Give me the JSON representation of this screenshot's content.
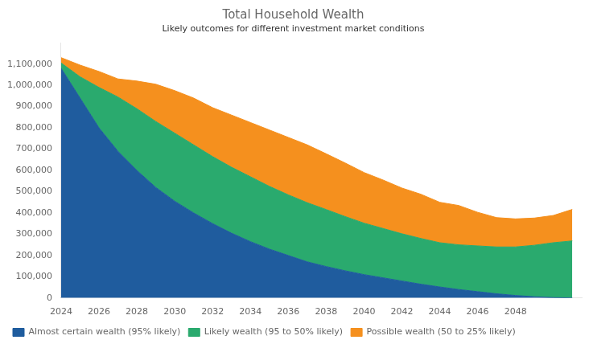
{
  "chart_data": {
    "type": "area",
    "title": "Total Household Wealth",
    "subtitle": "Likely outcomes for different investment market conditions",
    "x": [
      2024,
      2025,
      2026,
      2027,
      2028,
      2029,
      2030,
      2031,
      2032,
      2033,
      2034,
      2035,
      2036,
      2037,
      2038,
      2039,
      2040,
      2041,
      2042,
      2043,
      2044,
      2045,
      2046,
      2047,
      2048,
      2049,
      2050,
      2051
    ],
    "series": [
      {
        "name": "Almost certain wealth (95% likely)",
        "color": "#1f5c9e",
        "values": [
          1080000,
          940000,
          800000,
          690000,
          600000,
          520000,
          455000,
          400000,
          350000,
          305000,
          265000,
          230000,
          200000,
          170000,
          148000,
          128000,
          110000,
          95000,
          80000,
          65000,
          52000,
          40000,
          30000,
          20000,
          12000,
          6000,
          2000,
          500
        ]
      },
      {
        "name": "Likely wealth (95 to 50% likely)",
        "color": "#2aaa6e",
        "values": [
          25000,
          100000,
          190000,
          255000,
          290000,
          310000,
          320000,
          320000,
          315000,
          310000,
          305000,
          295000,
          285000,
          278000,
          268000,
          255000,
          242000,
          232000,
          222000,
          215000,
          208000,
          210000,
          215000,
          220000,
          228000,
          242000,
          258000,
          268000
        ]
      },
      {
        "name": "Possible wealth (50 to 25% likely)",
        "color": "#f5901e",
        "values": [
          25000,
          55000,
          75000,
          85000,
          130000,
          175000,
          200000,
          220000,
          230000,
          245000,
          255000,
          265000,
          270000,
          272000,
          262000,
          252000,
          238000,
          228000,
          215000,
          208000,
          190000,
          185000,
          158000,
          138000,
          132000,
          128000,
          128000,
          148000
        ]
      }
    ],
    "xlim": [
      2024,
      2051.5
    ],
    "xticks": [
      2024,
      2026,
      2028,
      2030,
      2032,
      2034,
      2036,
      2038,
      2040,
      2042,
      2044,
      2046,
      2048
    ],
    "ylim": [
      0,
      1200000
    ],
    "yticks": [
      0,
      {
        "value": 100000,
        "label": "100,000"
      },
      {
        "value": 200000,
        "label": "200,000"
      },
      {
        "value": 300000,
        "label": "300,000"
      },
      {
        "value": 400000,
        "label": "400,000"
      },
      {
        "value": 500000,
        "label": "500,000"
      },
      {
        "value": 600000,
        "label": "600,000"
      },
      {
        "value": 700000,
        "label": "700,000"
      },
      {
        "value": 800000,
        "label": "800,000"
      },
      {
        "value": 900000,
        "label": "900,000"
      },
      {
        "value": 1000000,
        "label": "1,000,000"
      },
      {
        "value": 1100000,
        "label": "1,100,000"
      }
    ],
    "stacked": true,
    "grid": false,
    "legend": "lower left"
  }
}
